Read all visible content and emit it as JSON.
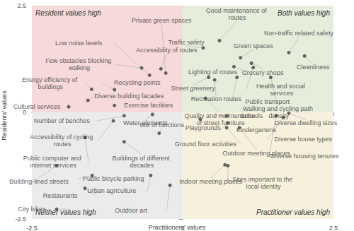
{
  "chart_data": {
    "type": "scatter",
    "xlabel": "Practitioners' values",
    "ylabel": "Residents' values",
    "xlim": [
      -2.5,
      2.5
    ],
    "ylim": [
      -2.5,
      2.5
    ],
    "xticks": [
      -2.5,
      0,
      2.5
    ],
    "yticks": [
      -2.5,
      0,
      2.5
    ],
    "grid": false,
    "color": "#404040",
    "marker": "circle",
    "quadrants": [
      {
        "label": "Resident values high",
        "x": [
          -2.5,
          0
        ],
        "y": [
          0,
          2.5
        ],
        "color": "#f6dada"
      },
      {
        "label": "Both values high",
        "x": [
          0,
          2.5
        ],
        "y": [
          0,
          2.5
        ],
        "color": "#e5eddb"
      },
      {
        "label": "Neither values high",
        "x": [
          -2.5,
          0
        ],
        "y": [
          -2.5,
          0
        ],
        "color": "#ebebeb"
      },
      {
        "label": "Practitioner values high",
        "x": [
          0,
          2.5
        ],
        "y": [
          -2.5,
          0
        ],
        "color": "#f6f1dc"
      }
    ],
    "point_labels": [
      "Private green spaces",
      "Accessibility of routes",
      "Low noise levels",
      "Few obstacles blocking walking",
      "Energy efficiency of buildings",
      "Recycling points",
      "Diverse building facades",
      "Cultural services",
      "Exercise facilities",
      "Good maintenance of routes",
      "Traffic safety",
      "Green spaces",
      "Non-traffic related safety",
      "Lighting of routes",
      "Grocery shops",
      "Cleanliness",
      "Health and social services",
      "Street greenery",
      "Public transport",
      "Recreation routes",
      "Walking and cycling path density",
      "Quality and maintenance of street furniture",
      "Number of benches",
      "Water elements",
      "Accessibility of cycling routes",
      "Mix of functions",
      "Public computer and internet services",
      "Buildings of different decades",
      "Building-lined streets",
      "Public bicycle parking",
      "Restaurants",
      "Urban agriculture",
      "City bikes",
      "Outdoor art",
      "Playgrounds",
      "Schools",
      "Kindergartens",
      "Diverse dwelling sizes",
      "Diverse house types",
      "Diverse housing tenures",
      "Ground floor activities",
      "Outdoor meeting places",
      "Indoor meeting places",
      "Sites important to the local identity"
    ],
    "x": [
      -0.28,
      -0.36,
      -0.55,
      -0.68,
      -1.51,
      -1.13,
      -1.57,
      -1.89,
      -1.13,
      0.61,
      0.34,
      0.96,
      1.76,
      0.85,
      1.14,
      2.02,
      1.17,
      0.43,
      0.9,
      0.53,
      1.46,
      0.38,
      -0.97,
      -0.5,
      -1.15,
      -0.39,
      -1.62,
      -0.97,
      -2.09,
      -1.5,
      -1.62,
      -0.53,
      -2.09,
      -0.21,
      0.29,
      0.73,
      0.75,
      1.76,
      1.67,
      1.55,
      0.73,
      0.94,
      0.7,
      0.75
    ],
    "values": [
      0.92,
      1.02,
      0.87,
      1.04,
      0.54,
      0.53,
      0.28,
      0.13,
      0.16,
      1.68,
      1.51,
      1.28,
      1.4,
      1.07,
      1.15,
      1.32,
      1.05,
      0.82,
      0.82,
      0.76,
      0.82,
      0.33,
      -0.08,
      -0.05,
      -0.2,
      -0.49,
      -0.59,
      -0.69,
      -1.25,
      -1.48,
      -1.78,
      -1.48,
      -2.27,
      -1.71,
      -0.16,
      -0.08,
      -0.25,
      -0.02,
      -0.12,
      -0.08,
      -0.36,
      -0.36,
      -1.23,
      -1.25
    ]
  }
}
